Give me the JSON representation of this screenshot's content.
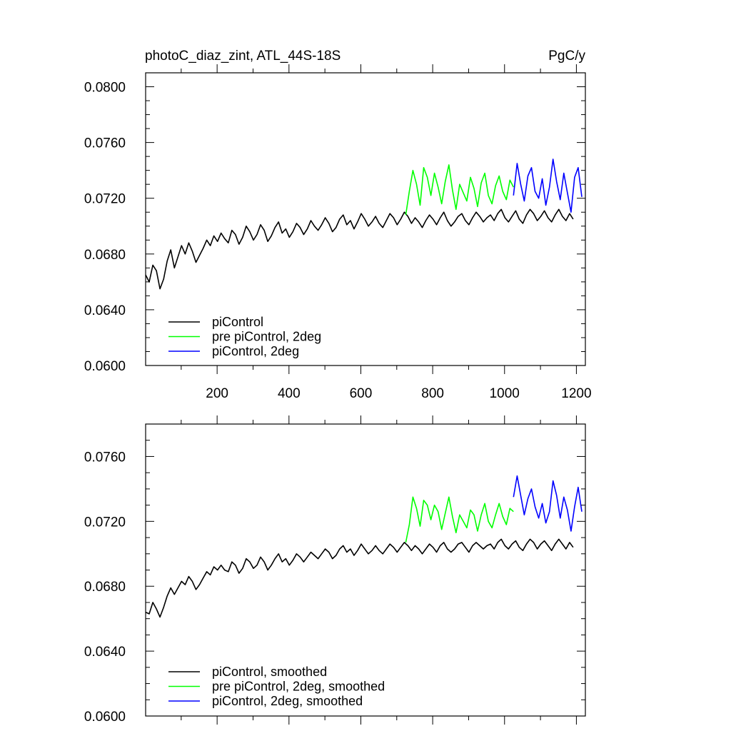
{
  "chart_data": [
    {
      "type": "line",
      "title_left": "photoC_diaz_zint, ATL_44S-18S",
      "title_right": "PgC/y",
      "xlabel": "",
      "ylabel": "",
      "xlim": [
        1,
        1225
      ],
      "ylim": [
        0.06,
        0.081
      ],
      "y_ticks": [
        0.06,
        0.064,
        0.068,
        0.072,
        0.076,
        0.08
      ],
      "y_tick_labels": [
        "0.0600",
        "0.0640",
        "0.0680",
        "0.0720",
        "0.0760",
        "0.0800"
      ],
      "x_ticks": [
        200,
        400,
        600,
        800,
        1000,
        1200
      ],
      "x_tick_labels": [
        "200",
        "400",
        "600",
        "800",
        "1000",
        "1200"
      ],
      "legend_position": "bottom-left",
      "series": [
        {
          "name": "piControl",
          "color": "#000000",
          "x_start": 1,
          "x_step": 10,
          "values": [
            0.0665,
            0.066,
            0.0672,
            0.0668,
            0.0655,
            0.0662,
            0.0675,
            0.0683,
            0.067,
            0.0678,
            0.0686,
            0.068,
            0.0688,
            0.0682,
            0.0674,
            0.0679,
            0.0684,
            0.069,
            0.0686,
            0.0693,
            0.0689,
            0.0695,
            0.0691,
            0.0688,
            0.0697,
            0.0694,
            0.0687,
            0.0692,
            0.07,
            0.0696,
            0.069,
            0.0694,
            0.0701,
            0.0697,
            0.0689,
            0.0693,
            0.0699,
            0.0703,
            0.0695,
            0.0698,
            0.0692,
            0.0696,
            0.0702,
            0.0699,
            0.0694,
            0.0698,
            0.0704,
            0.07,
            0.0697,
            0.0701,
            0.0706,
            0.0702,
            0.0696,
            0.0699,
            0.0705,
            0.0708,
            0.0701,
            0.0704,
            0.0698,
            0.0703,
            0.0709,
            0.0705,
            0.07,
            0.0703,
            0.0707,
            0.0702,
            0.0699,
            0.0704,
            0.0709,
            0.0706,
            0.0701,
            0.0705,
            0.071,
            0.0707,
            0.0702,
            0.0706,
            0.0703,
            0.0699,
            0.0704,
            0.0708,
            0.0705,
            0.0701,
            0.0706,
            0.071,
            0.0704,
            0.07,
            0.0703,
            0.0707,
            0.0709,
            0.0704,
            0.0701,
            0.0706,
            0.071,
            0.0707,
            0.0703,
            0.0706,
            0.0708,
            0.0704,
            0.0709,
            0.0712,
            0.0706,
            0.0703,
            0.0707,
            0.0711,
            0.0705,
            0.0702,
            0.0708,
            0.0712,
            0.0709,
            0.0704,
            0.0707,
            0.0711,
            0.0706,
            0.0703,
            0.0708,
            0.0712,
            0.0707,
            0.0704,
            0.0709,
            0.0705
          ]
        },
        {
          "name": "pre piControl, 2deg",
          "color": "#00ff00",
          "x_start": 725,
          "x_step": 10,
          "values": [
            0.0708,
            0.0725,
            0.074,
            0.073,
            0.0715,
            0.0742,
            0.0735,
            0.0722,
            0.0738,
            0.0728,
            0.0716,
            0.0732,
            0.0744,
            0.0726,
            0.0712,
            0.073,
            0.0724,
            0.0718,
            0.0735,
            0.0727,
            0.0714,
            0.0731,
            0.0738,
            0.0722,
            0.0716,
            0.0729,
            0.0736,
            0.0725,
            0.0719,
            0.0733,
            0.0728
          ]
        },
        {
          "name": "piControl, 2deg",
          "color": "#0000ff",
          "x_start": 1025,
          "x_step": 10,
          "values": [
            0.0722,
            0.0745,
            0.073,
            0.0718,
            0.0736,
            0.0742,
            0.0725,
            0.072,
            0.0734,
            0.0715,
            0.0728,
            0.0748,
            0.0732,
            0.0719,
            0.0738,
            0.0724,
            0.071,
            0.0735,
            0.0742,
            0.0721
          ]
        }
      ]
    },
    {
      "type": "line",
      "xlabel": "",
      "ylabel": "",
      "xlim": [
        1,
        1225
      ],
      "ylim": [
        0.06,
        0.078
      ],
      "y_ticks": [
        0.06,
        0.064,
        0.068,
        0.072,
        0.076
      ],
      "y_tick_labels": [
        "0.0600",
        "0.0640",
        "0.0680",
        "0.0720",
        "0.0760"
      ],
      "legend_position": "bottom-left",
      "series": [
        {
          "name": "piControl, smoothed",
          "color": "#000000",
          "x_start": 1,
          "x_step": 10,
          "values": [
            0.0664,
            0.0663,
            0.067,
            0.0666,
            0.0661,
            0.0667,
            0.0674,
            0.0679,
            0.0675,
            0.0679,
            0.0683,
            0.0681,
            0.0686,
            0.0683,
            0.0678,
            0.0681,
            0.0685,
            0.0689,
            0.0687,
            0.0692,
            0.069,
            0.0693,
            0.069,
            0.0689,
            0.0695,
            0.0693,
            0.0688,
            0.0691,
            0.0697,
            0.0695,
            0.0691,
            0.0693,
            0.0698,
            0.0695,
            0.069,
            0.0693,
            0.0697,
            0.07,
            0.0695,
            0.0697,
            0.0693,
            0.0696,
            0.07,
            0.0698,
            0.0695,
            0.0698,
            0.0701,
            0.0699,
            0.0697,
            0.07,
            0.0703,
            0.0701,
            0.0697,
            0.0699,
            0.0703,
            0.0705,
            0.0701,
            0.0703,
            0.0699,
            0.0702,
            0.0706,
            0.0703,
            0.07,
            0.0702,
            0.0705,
            0.0702,
            0.07,
            0.0703,
            0.0706,
            0.0704,
            0.0701,
            0.0704,
            0.0707,
            0.0705,
            0.0702,
            0.0705,
            0.0703,
            0.07,
            0.0703,
            0.0706,
            0.0704,
            0.0701,
            0.0705,
            0.0707,
            0.0703,
            0.0701,
            0.0703,
            0.0706,
            0.0707,
            0.0704,
            0.0701,
            0.0705,
            0.0707,
            0.0705,
            0.0703,
            0.0705,
            0.0706,
            0.0703,
            0.0707,
            0.0709,
            0.0705,
            0.0703,
            0.0706,
            0.0708,
            0.0704,
            0.0702,
            0.0706,
            0.0709,
            0.0707,
            0.0703,
            0.0706,
            0.0708,
            0.0705,
            0.0702,
            0.0706,
            0.0709,
            0.0706,
            0.0703,
            0.0707,
            0.0704
          ]
        },
        {
          "name": "pre piControl, 2deg, smoothed",
          "color": "#00ff00",
          "x_start": 725,
          "x_step": 10,
          "values": [
            0.0707,
            0.0718,
            0.0735,
            0.0728,
            0.0717,
            0.0733,
            0.073,
            0.0721,
            0.073,
            0.0726,
            0.0715,
            0.0725,
            0.0735,
            0.0723,
            0.0713,
            0.0724,
            0.072,
            0.0716,
            0.0727,
            0.0724,
            0.0714,
            0.0724,
            0.0731,
            0.072,
            0.0716,
            0.0724,
            0.0731,
            0.0723,
            0.0718,
            0.0728,
            0.0726
          ]
        },
        {
          "name": "piControl, 2deg, smoothed",
          "color": "#0000ff",
          "x_start": 1025,
          "x_step": 10,
          "values": [
            0.0735,
            0.0748,
            0.0736,
            0.0724,
            0.0734,
            0.074,
            0.0729,
            0.0722,
            0.0731,
            0.0719,
            0.0726,
            0.0745,
            0.0736,
            0.0722,
            0.0735,
            0.0727,
            0.0714,
            0.0729,
            0.0741,
            0.0726
          ]
        }
      ]
    }
  ]
}
